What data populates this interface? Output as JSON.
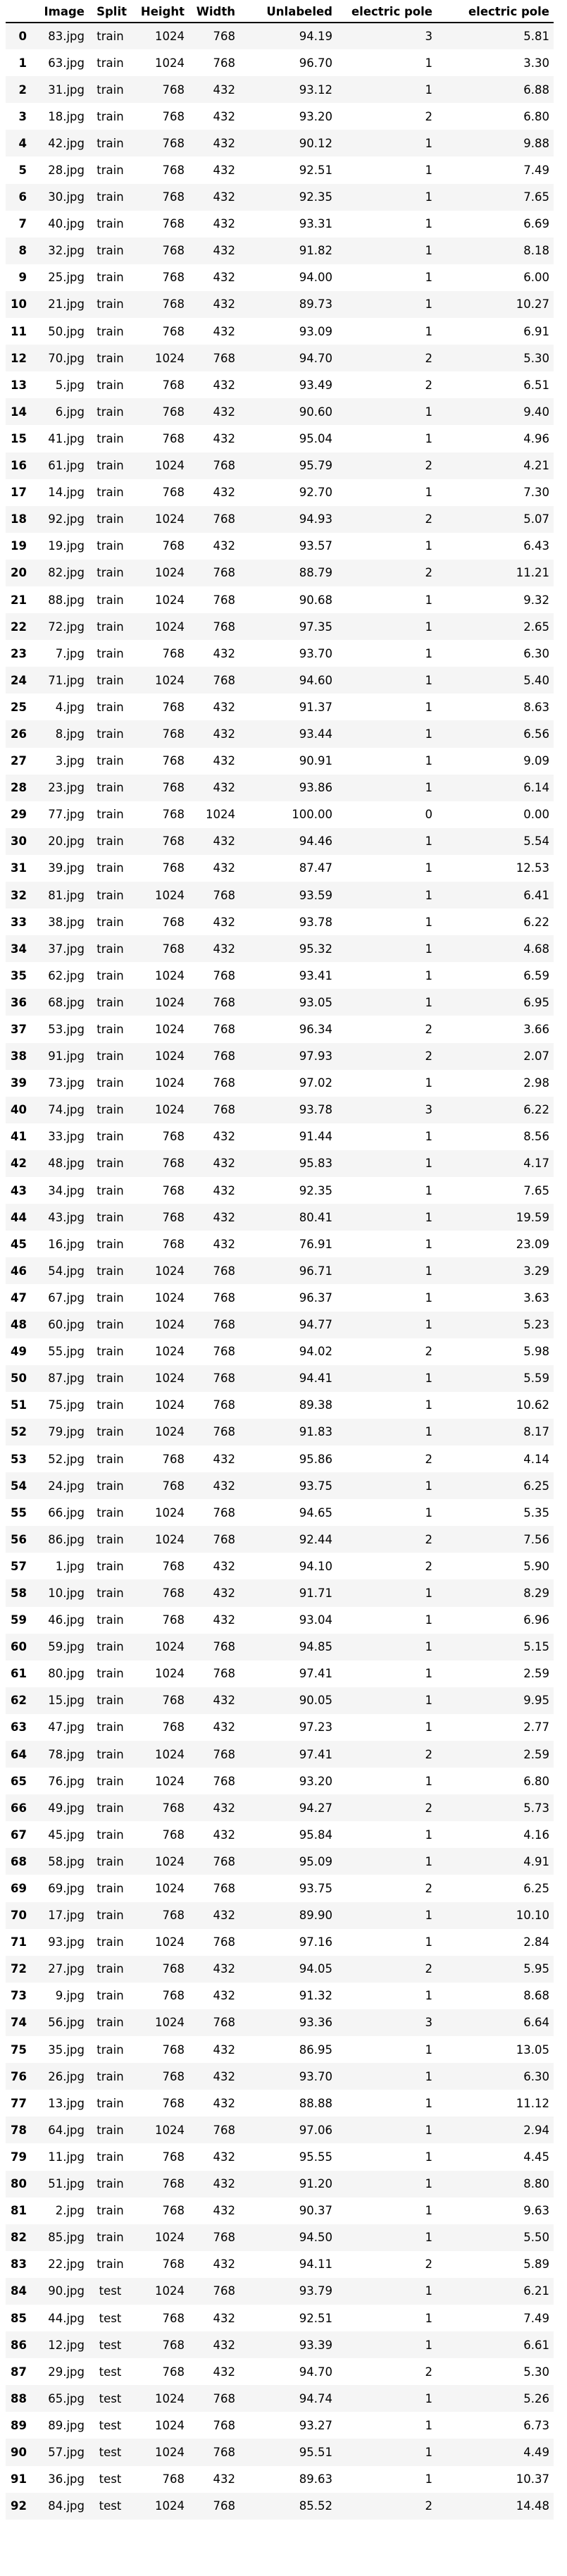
{
  "table": {
    "columns": [
      "",
      "Image",
      "Split",
      "Height",
      "Width",
      "Unlabeled",
      "electric pole",
      "electric pole"
    ],
    "rows": [
      [
        "0",
        "83.jpg",
        "train",
        "1024",
        "768",
        "94.19",
        "3",
        "5.81"
      ],
      [
        "1",
        "63.jpg",
        "train",
        "1024",
        "768",
        "96.70",
        "1",
        "3.30"
      ],
      [
        "2",
        "31.jpg",
        "train",
        "768",
        "432",
        "93.12",
        "1",
        "6.88"
      ],
      [
        "3",
        "18.jpg",
        "train",
        "768",
        "432",
        "93.20",
        "2",
        "6.80"
      ],
      [
        "4",
        "42.jpg",
        "train",
        "768",
        "432",
        "90.12",
        "1",
        "9.88"
      ],
      [
        "5",
        "28.jpg",
        "train",
        "768",
        "432",
        "92.51",
        "1",
        "7.49"
      ],
      [
        "6",
        "30.jpg",
        "train",
        "768",
        "432",
        "92.35",
        "1",
        "7.65"
      ],
      [
        "7",
        "40.jpg",
        "train",
        "768",
        "432",
        "93.31",
        "1",
        "6.69"
      ],
      [
        "8",
        "32.jpg",
        "train",
        "768",
        "432",
        "91.82",
        "1",
        "8.18"
      ],
      [
        "9",
        "25.jpg",
        "train",
        "768",
        "432",
        "94.00",
        "1",
        "6.00"
      ],
      [
        "10",
        "21.jpg",
        "train",
        "768",
        "432",
        "89.73",
        "1",
        "10.27"
      ],
      [
        "11",
        "50.jpg",
        "train",
        "768",
        "432",
        "93.09",
        "1",
        "6.91"
      ],
      [
        "12",
        "70.jpg",
        "train",
        "1024",
        "768",
        "94.70",
        "2",
        "5.30"
      ],
      [
        "13",
        "5.jpg",
        "train",
        "768",
        "432",
        "93.49",
        "2",
        "6.51"
      ],
      [
        "14",
        "6.jpg",
        "train",
        "768",
        "432",
        "90.60",
        "1",
        "9.40"
      ],
      [
        "15",
        "41.jpg",
        "train",
        "768",
        "432",
        "95.04",
        "1",
        "4.96"
      ],
      [
        "16",
        "61.jpg",
        "train",
        "1024",
        "768",
        "95.79",
        "2",
        "4.21"
      ],
      [
        "17",
        "14.jpg",
        "train",
        "768",
        "432",
        "92.70",
        "1",
        "7.30"
      ],
      [
        "18",
        "92.jpg",
        "train",
        "1024",
        "768",
        "94.93",
        "2",
        "5.07"
      ],
      [
        "19",
        "19.jpg",
        "train",
        "768",
        "432",
        "93.57",
        "1",
        "6.43"
      ],
      [
        "20",
        "82.jpg",
        "train",
        "1024",
        "768",
        "88.79",
        "2",
        "11.21"
      ],
      [
        "21",
        "88.jpg",
        "train",
        "1024",
        "768",
        "90.68",
        "1",
        "9.32"
      ],
      [
        "22",
        "72.jpg",
        "train",
        "1024",
        "768",
        "97.35",
        "1",
        "2.65"
      ],
      [
        "23",
        "7.jpg",
        "train",
        "768",
        "432",
        "93.70",
        "1",
        "6.30"
      ],
      [
        "24",
        "71.jpg",
        "train",
        "1024",
        "768",
        "94.60",
        "1",
        "5.40"
      ],
      [
        "25",
        "4.jpg",
        "train",
        "768",
        "432",
        "91.37",
        "1",
        "8.63"
      ],
      [
        "26",
        "8.jpg",
        "train",
        "768",
        "432",
        "93.44",
        "1",
        "6.56"
      ],
      [
        "27",
        "3.jpg",
        "train",
        "768",
        "432",
        "90.91",
        "1",
        "9.09"
      ],
      [
        "28",
        "23.jpg",
        "train",
        "768",
        "432",
        "93.86",
        "1",
        "6.14"
      ],
      [
        "29",
        "77.jpg",
        "train",
        "768",
        "1024",
        "100.00",
        "0",
        "0.00"
      ],
      [
        "30",
        "20.jpg",
        "train",
        "768",
        "432",
        "94.46",
        "1",
        "5.54"
      ],
      [
        "31",
        "39.jpg",
        "train",
        "768",
        "432",
        "87.47",
        "1",
        "12.53"
      ],
      [
        "32",
        "81.jpg",
        "train",
        "1024",
        "768",
        "93.59",
        "1",
        "6.41"
      ],
      [
        "33",
        "38.jpg",
        "train",
        "768",
        "432",
        "93.78",
        "1",
        "6.22"
      ],
      [
        "34",
        "37.jpg",
        "train",
        "768",
        "432",
        "95.32",
        "1",
        "4.68"
      ],
      [
        "35",
        "62.jpg",
        "train",
        "1024",
        "768",
        "93.41",
        "1",
        "6.59"
      ],
      [
        "36",
        "68.jpg",
        "train",
        "1024",
        "768",
        "93.05",
        "1",
        "6.95"
      ],
      [
        "37",
        "53.jpg",
        "train",
        "1024",
        "768",
        "96.34",
        "2",
        "3.66"
      ],
      [
        "38",
        "91.jpg",
        "train",
        "1024",
        "768",
        "97.93",
        "2",
        "2.07"
      ],
      [
        "39",
        "73.jpg",
        "train",
        "1024",
        "768",
        "97.02",
        "1",
        "2.98"
      ],
      [
        "40",
        "74.jpg",
        "train",
        "1024",
        "768",
        "93.78",
        "3",
        "6.22"
      ],
      [
        "41",
        "33.jpg",
        "train",
        "768",
        "432",
        "91.44",
        "1",
        "8.56"
      ],
      [
        "42",
        "48.jpg",
        "train",
        "768",
        "432",
        "95.83",
        "1",
        "4.17"
      ],
      [
        "43",
        "34.jpg",
        "train",
        "768",
        "432",
        "92.35",
        "1",
        "7.65"
      ],
      [
        "44",
        "43.jpg",
        "train",
        "768",
        "432",
        "80.41",
        "1",
        "19.59"
      ],
      [
        "45",
        "16.jpg",
        "train",
        "768",
        "432",
        "76.91",
        "1",
        "23.09"
      ],
      [
        "46",
        "54.jpg",
        "train",
        "1024",
        "768",
        "96.71",
        "1",
        "3.29"
      ],
      [
        "47",
        "67.jpg",
        "train",
        "1024",
        "768",
        "96.37",
        "1",
        "3.63"
      ],
      [
        "48",
        "60.jpg",
        "train",
        "1024",
        "768",
        "94.77",
        "1",
        "5.23"
      ],
      [
        "49",
        "55.jpg",
        "train",
        "1024",
        "768",
        "94.02",
        "2",
        "5.98"
      ],
      [
        "50",
        "87.jpg",
        "train",
        "1024",
        "768",
        "94.41",
        "1",
        "5.59"
      ],
      [
        "51",
        "75.jpg",
        "train",
        "1024",
        "768",
        "89.38",
        "1",
        "10.62"
      ],
      [
        "52",
        "79.jpg",
        "train",
        "1024",
        "768",
        "91.83",
        "1",
        "8.17"
      ],
      [
        "53",
        "52.jpg",
        "train",
        "768",
        "432",
        "95.86",
        "2",
        "4.14"
      ],
      [
        "54",
        "24.jpg",
        "train",
        "768",
        "432",
        "93.75",
        "1",
        "6.25"
      ],
      [
        "55",
        "66.jpg",
        "train",
        "1024",
        "768",
        "94.65",
        "1",
        "5.35"
      ],
      [
        "56",
        "86.jpg",
        "train",
        "1024",
        "768",
        "92.44",
        "2",
        "7.56"
      ],
      [
        "57",
        "1.jpg",
        "train",
        "768",
        "432",
        "94.10",
        "2",
        "5.90"
      ],
      [
        "58",
        "10.jpg",
        "train",
        "768",
        "432",
        "91.71",
        "1",
        "8.29"
      ],
      [
        "59",
        "46.jpg",
        "train",
        "768",
        "432",
        "93.04",
        "1",
        "6.96"
      ],
      [
        "60",
        "59.jpg",
        "train",
        "1024",
        "768",
        "94.85",
        "1",
        "5.15"
      ],
      [
        "61",
        "80.jpg",
        "train",
        "1024",
        "768",
        "97.41",
        "1",
        "2.59"
      ],
      [
        "62",
        "15.jpg",
        "train",
        "768",
        "432",
        "90.05",
        "1",
        "9.95"
      ],
      [
        "63",
        "47.jpg",
        "train",
        "768",
        "432",
        "97.23",
        "1",
        "2.77"
      ],
      [
        "64",
        "78.jpg",
        "train",
        "1024",
        "768",
        "97.41",
        "2",
        "2.59"
      ],
      [
        "65",
        "76.jpg",
        "train",
        "1024",
        "768",
        "93.20",
        "1",
        "6.80"
      ],
      [
        "66",
        "49.jpg",
        "train",
        "768",
        "432",
        "94.27",
        "2",
        "5.73"
      ],
      [
        "67",
        "45.jpg",
        "train",
        "768",
        "432",
        "95.84",
        "1",
        "4.16"
      ],
      [
        "68",
        "58.jpg",
        "train",
        "1024",
        "768",
        "95.09",
        "1",
        "4.91"
      ],
      [
        "69",
        "69.jpg",
        "train",
        "1024",
        "768",
        "93.75",
        "2",
        "6.25"
      ],
      [
        "70",
        "17.jpg",
        "train",
        "768",
        "432",
        "89.90",
        "1",
        "10.10"
      ],
      [
        "71",
        "93.jpg",
        "train",
        "1024",
        "768",
        "97.16",
        "1",
        "2.84"
      ],
      [
        "72",
        "27.jpg",
        "train",
        "768",
        "432",
        "94.05",
        "2",
        "5.95"
      ],
      [
        "73",
        "9.jpg",
        "train",
        "768",
        "432",
        "91.32",
        "1",
        "8.68"
      ],
      [
        "74",
        "56.jpg",
        "train",
        "1024",
        "768",
        "93.36",
        "3",
        "6.64"
      ],
      [
        "75",
        "35.jpg",
        "train",
        "768",
        "432",
        "86.95",
        "1",
        "13.05"
      ],
      [
        "76",
        "26.jpg",
        "train",
        "768",
        "432",
        "93.70",
        "1",
        "6.30"
      ],
      [
        "77",
        "13.jpg",
        "train",
        "768",
        "432",
        "88.88",
        "1",
        "11.12"
      ],
      [
        "78",
        "64.jpg",
        "train",
        "1024",
        "768",
        "97.06",
        "1",
        "2.94"
      ],
      [
        "79",
        "11.jpg",
        "train",
        "768",
        "432",
        "95.55",
        "1",
        "4.45"
      ],
      [
        "80",
        "51.jpg",
        "train",
        "768",
        "432",
        "91.20",
        "1",
        "8.80"
      ],
      [
        "81",
        "2.jpg",
        "train",
        "768",
        "432",
        "90.37",
        "1",
        "9.63"
      ],
      [
        "82",
        "85.jpg",
        "train",
        "1024",
        "768",
        "94.50",
        "1",
        "5.50"
      ],
      [
        "83",
        "22.jpg",
        "train",
        "768",
        "432",
        "94.11",
        "2",
        "5.89"
      ],
      [
        "84",
        "90.jpg",
        "test",
        "1024",
        "768",
        "93.79",
        "1",
        "6.21"
      ],
      [
        "85",
        "44.jpg",
        "test",
        "768",
        "432",
        "92.51",
        "1",
        "7.49"
      ],
      [
        "86",
        "12.jpg",
        "test",
        "768",
        "432",
        "93.39",
        "1",
        "6.61"
      ],
      [
        "87",
        "29.jpg",
        "test",
        "768",
        "432",
        "94.70",
        "2",
        "5.30"
      ],
      [
        "88",
        "65.jpg",
        "test",
        "1024",
        "768",
        "94.74",
        "1",
        "5.26"
      ],
      [
        "89",
        "89.jpg",
        "test",
        "1024",
        "768",
        "93.27",
        "1",
        "6.73"
      ],
      [
        "90",
        "57.jpg",
        "test",
        "1024",
        "768",
        "95.51",
        "1",
        "4.49"
      ],
      [
        "91",
        "36.jpg",
        "test",
        "768",
        "432",
        "89.63",
        "1",
        "10.37"
      ],
      [
        "92",
        "84.jpg",
        "test",
        "1024",
        "768",
        "85.52",
        "2",
        "14.48"
      ]
    ]
  }
}
